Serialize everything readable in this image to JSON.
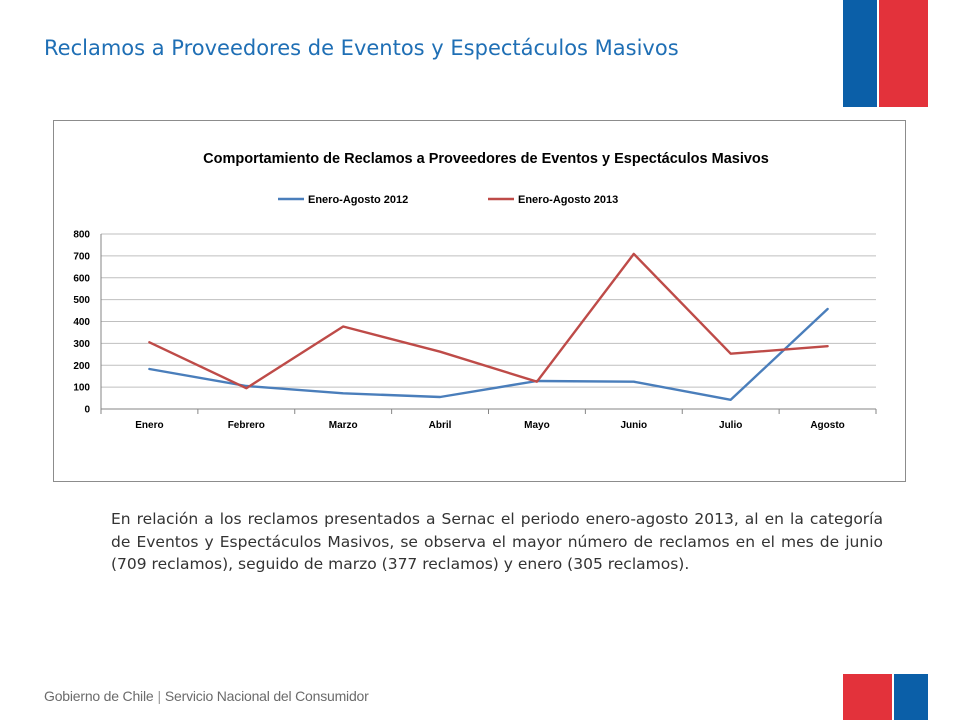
{
  "slide": {
    "title": "Reclamos a Proveedores de Eventos y Espectáculos Masivos",
    "paragraph": "En relación a los reclamos presentados a Sernac el periodo enero-agosto 2013, al en la categoría de Eventos y Espectáculos Masivos, se observa el mayor número de reclamos en el mes de junio (709 reclamos), seguido de marzo (377 reclamos) y enero (305 reclamos).",
    "footer_left": "Gobierno de Chile",
    "footer_sep": "|",
    "footer_right": "Servicio Nacional del Consumidor"
  },
  "colors": {
    "accent_blue": "#0b5fa8",
    "accent_red": "#e3323b",
    "title_blue": "#1f6fb5"
  },
  "chart_data": {
    "type": "line",
    "title": "Comportamiento  de Reclamos a Proveedores de Eventos y Espectáculos Masivos",
    "categories": [
      "Enero",
      "Febrero",
      "Marzo",
      "Abril",
      "Mayo",
      "Junio",
      "Julio",
      "Agosto"
    ],
    "series": [
      {
        "name": "Enero-Agosto 2012",
        "color": "#4a7ebb",
        "values": [
          183,
          105,
          72,
          55,
          128,
          125,
          42,
          457
        ]
      },
      {
        "name": "Enero-Agosto 2013",
        "color": "#be4b48",
        "values": [
          305,
          95,
          377,
          262,
          125,
          709,
          253,
          287
        ]
      }
    ],
    "ylim": [
      0,
      800
    ],
    "yticks": [
      0,
      100,
      200,
      300,
      400,
      500,
      600,
      700,
      800
    ],
    "grid": true,
    "legend": "top-center",
    "xlabel": "",
    "ylabel": ""
  }
}
